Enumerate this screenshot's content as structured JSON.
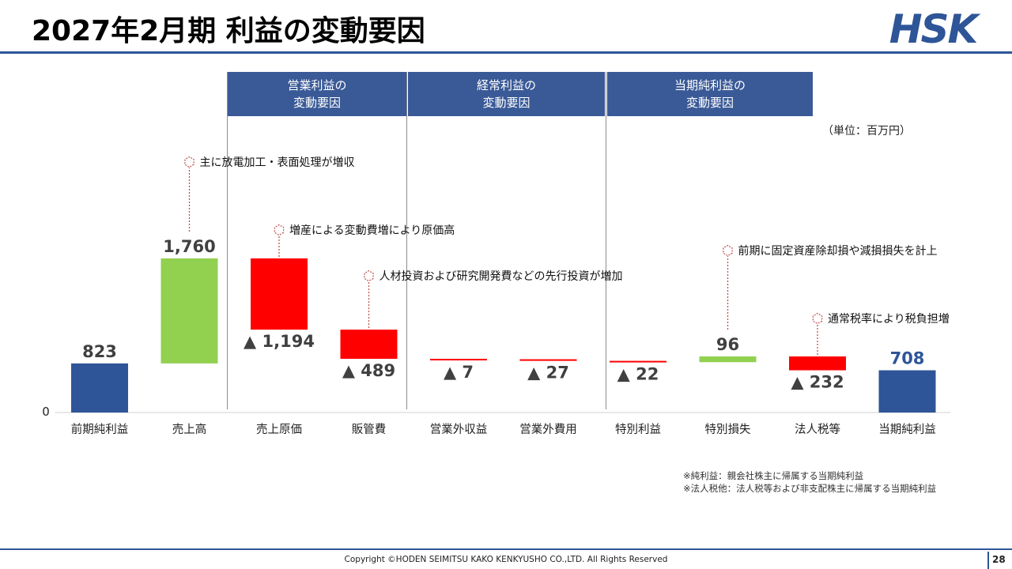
{
  "header": {
    "title": "2027年2月期 利益の変動要因",
    "logo_text": "HSK"
  },
  "sections": [
    {
      "line1": "営業利益の",
      "line2": "変動要因"
    },
    {
      "line1": "経常利益の",
      "line2": "変動要因"
    },
    {
      "line1": "当期純利益の",
      "line2": "変動要因"
    }
  ],
  "unit_label": "（単位：百万円）",
  "chart_data": {
    "type": "bar",
    "subtype": "waterfall",
    "categories": [
      "前期純利益",
      "売上高",
      "売上原価",
      "販管費",
      "営業外収益",
      "営業外費用",
      "特別利益",
      "特別損失",
      "法人税等",
      "当期純利益"
    ],
    "values": [
      823,
      1760,
      -1194,
      -489,
      -7,
      -27,
      -22,
      96,
      -232,
      708
    ],
    "bar_kind": [
      "total",
      "up",
      "down",
      "down",
      "down",
      "down",
      "down",
      "up",
      "down",
      "total"
    ],
    "value_labels": [
      "823",
      "1,760",
      "▲ 1,194",
      "▲ 489",
      "▲ 7",
      "▲ 27",
      "▲ 22",
      "96",
      "▲ 232",
      "708"
    ],
    "zero_label": "0",
    "colors": {
      "total": "#2e5597",
      "up": "#92d050",
      "down": "#ff0000",
      "total_label_last": "#2e5597"
    },
    "annotations": [
      {
        "category": "売上高",
        "text": "主に放電加工・表面処理が増収"
      },
      {
        "category": "売上原価",
        "text": "増産による変動費増により原価高"
      },
      {
        "category": "販管費",
        "text": "人材投資および研究開発費などの先行投資が増加"
      },
      {
        "category": "特別損失",
        "text": "前期に固定資産除却損や減損損失を計上"
      },
      {
        "category": "法人税等",
        "text": "通常税率により税負担増"
      }
    ]
  },
  "notes": [
    "※純利益：親会社株主に帰属する当期純利益",
    "※法人税他：法人税等および非支配株主に帰属する当期純利益"
  ],
  "footer": {
    "copyright": "Copyright ©HODEN SEIMITSU KAKO KENKYUSHO CO.,LTD. All Rights Reserved",
    "page_number": "28"
  }
}
